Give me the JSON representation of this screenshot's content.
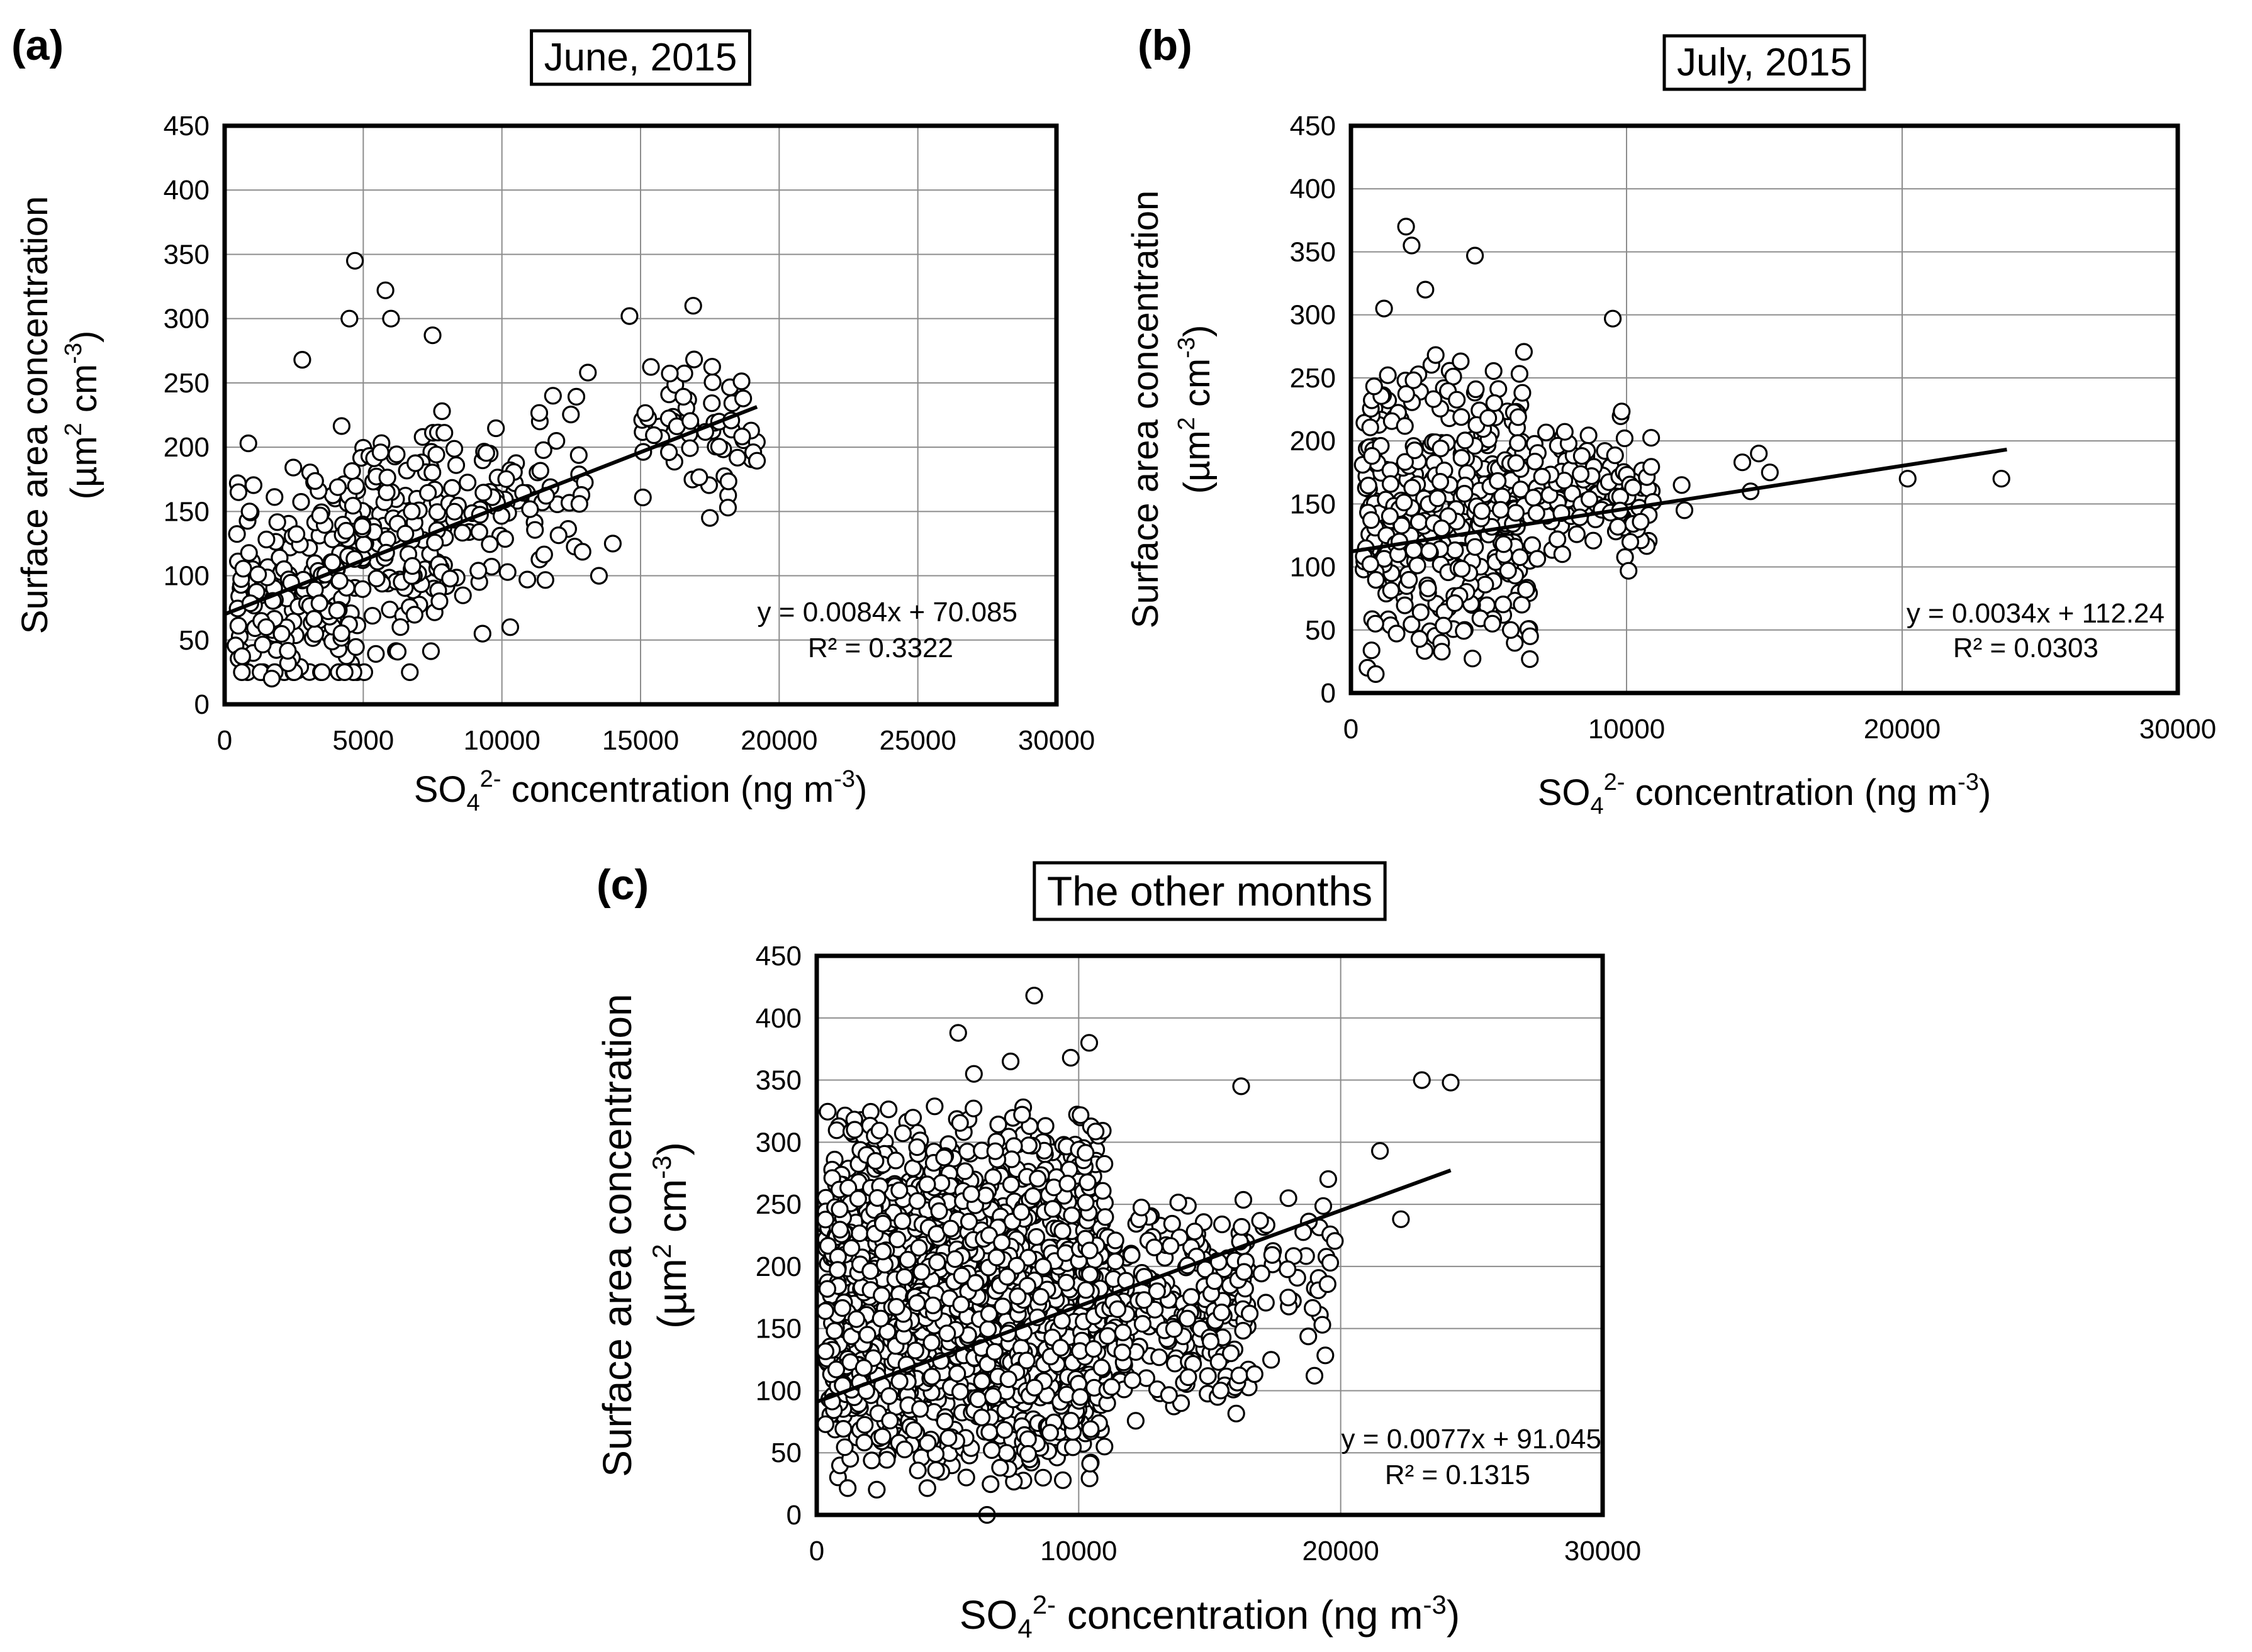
{
  "figure": {
    "background": "#ffffff",
    "ink": "#000000",
    "grid_color": "#8c8c8c"
  },
  "chart_data": [
    {
      "panel": "(a)",
      "type": "scatter",
      "title": "June, 2015",
      "xlabel": {
        "base": "SO",
        "sub": "4",
        "sup": "2-",
        "rest": " concentration (ng m",
        "unit_sup": "-3",
        "end": ")"
      },
      "ylabel": {
        "line1": "Surface area concentration",
        "line2_pre": "(µm",
        "line2_sup1": "2",
        "line2_mid": " cm",
        "line2_sup2": "-3",
        "line2_end": ")"
      },
      "xlim": [
        0,
        30000
      ],
      "ylim": [
        0,
        450
      ],
      "xticks": [
        0,
        5000,
        10000,
        15000,
        20000,
        25000,
        30000
      ],
      "yticks": [
        0,
        50,
        100,
        150,
        200,
        250,
        300,
        350,
        400,
        450
      ],
      "grid": true,
      "fit": {
        "slope": 0.0084,
        "intercept": 70.085,
        "x_range": [
          0,
          19200
        ],
        "equation": "y = 0.0084x + 70.085",
        "r2": "R² = 0.3322"
      },
      "seed": 11,
      "clusters": [
        {
          "n": 300,
          "x": [
            300,
            8000
          ],
          "y": [
            25,
            250
          ],
          "trend": true,
          "spread": 55
        },
        {
          "n": 80,
          "x": [
            8000,
            13000
          ],
          "y": [
            55,
            240
          ],
          "trend": true,
          "spread": 45
        },
        {
          "n": 60,
          "x": [
            15000,
            19200
          ],
          "y": [
            145,
            275
          ],
          "trend": false,
          "spread": 0
        }
      ],
      "points": [
        [
          4700,
          345
        ],
        [
          5800,
          322
        ],
        [
          7500,
          287
        ],
        [
          14600,
          302
        ],
        [
          16900,
          310
        ],
        [
          2800,
          268
        ],
        [
          9300,
          55
        ],
        [
          10300,
          60
        ],
        [
          13100,
          258
        ],
        [
          17500,
          145
        ],
        [
          13500,
          100
        ],
        [
          14000,
          125
        ],
        [
          900,
          150
        ],
        [
          500,
          165
        ],
        [
          1500,
          60
        ],
        [
          1700,
          20
        ],
        [
          6000,
          300
        ],
        [
          4500,
          300
        ]
      ]
    },
    {
      "panel": "(b)",
      "type": "scatter",
      "title": "July, 2015",
      "xlabel": {
        "base": "SO",
        "sub": "4",
        "sup": "2-",
        "rest": " concentration (ng m",
        "unit_sup": "-3",
        "end": ")"
      },
      "ylabel": {
        "line1": "Surface area concentration",
        "line2_pre": "(µm",
        "line2_sup1": "2",
        "line2_mid": " cm",
        "line2_sup2": "-3",
        "line2_end": ")"
      },
      "xlim": [
        0,
        30000
      ],
      "ylim": [
        0,
        450
      ],
      "xticks": [
        0,
        10000,
        20000,
        30000
      ],
      "yticks": [
        0,
        50,
        100,
        150,
        200,
        250,
        300,
        350,
        400,
        450
      ],
      "grid": true,
      "fit": {
        "slope": 0.0034,
        "intercept": 112.24,
        "x_range": [
          0,
          23800
        ],
        "equation": "y = 0.0034x + 112.24",
        "r2": "R² = 0.0303"
      },
      "seed": 23,
      "clusters": [
        {
          "n": 380,
          "x": [
            400,
            6500
          ],
          "y": [
            15,
            280
          ],
          "trend": false,
          "spread": 0
        },
        {
          "n": 120,
          "x": [
            6500,
            11000
          ],
          "y": [
            95,
            230
          ],
          "trend": false,
          "spread": 0
        }
      ],
      "points": [
        [
          2000,
          370
        ],
        [
          2200,
          355
        ],
        [
          4500,
          347
        ],
        [
          2700,
          320
        ],
        [
          1200,
          305
        ],
        [
          9500,
          297
        ],
        [
          12000,
          165
        ],
        [
          12100,
          145
        ],
        [
          14200,
          183
        ],
        [
          14500,
          160
        ],
        [
          14800,
          190
        ],
        [
          15200,
          175
        ],
        [
          20200,
          170
        ],
        [
          23600,
          170
        ],
        [
          600,
          20
        ],
        [
          900,
          15
        ],
        [
          6500,
          45
        ],
        [
          5800,
          50
        ],
        [
          5200,
          230
        ]
      ]
    },
    {
      "panel": "(c)",
      "type": "scatter",
      "title": "The other months",
      "xlabel": {
        "base": "SO",
        "sub": "4",
        "sup": "2-",
        "rest": " concentration (ng m",
        "unit_sup": "-3",
        "end": ")"
      },
      "ylabel": {
        "line1": "Surface area concentration",
        "line2_pre": "(µm",
        "line2_sup1": "2",
        "line2_mid": " cm",
        "line2_sup2": "-3",
        "line2_end": ")"
      },
      "xlim": [
        0,
        30000
      ],
      "ylim": [
        0,
        450
      ],
      "xticks": [
        0,
        10000,
        20000,
        30000
      ],
      "yticks": [
        0,
        50,
        100,
        150,
        200,
        250,
        300,
        350,
        400,
        450
      ],
      "grid": true,
      "fit": {
        "slope": 0.0077,
        "intercept": 91.045,
        "x_range": [
          0,
          24200
        ],
        "equation": "y = 0.0077x + 91.045",
        "r2": "R² = 0.1315"
      },
      "seed": 37,
      "clusters": [
        {
          "n": 1600,
          "x": [
            300,
            11000
          ],
          "y": [
            15,
            340
          ],
          "trend": false,
          "spread": 0
        },
        {
          "n": 250,
          "x": [
            10000,
            16500
          ],
          "y": [
            75,
            260
          ],
          "trend": false,
          "spread": 0
        },
        {
          "n": 40,
          "x": [
            16000,
            19800
          ],
          "y": [
            110,
            280
          ],
          "trend": false,
          "spread": 0
        }
      ],
      "points": [
        [
          8300,
          418
        ],
        [
          10400,
          380
        ],
        [
          5400,
          388
        ],
        [
          23100,
          350
        ],
        [
          24200,
          348
        ],
        [
          16200,
          345
        ],
        [
          21500,
          293
        ],
        [
          22300,
          238
        ],
        [
          19600,
          203
        ],
        [
          19300,
          153
        ],
        [
          19000,
          112
        ],
        [
          18000,
          175
        ],
        [
          6500,
          0
        ],
        [
          6000,
          355
        ],
        [
          7400,
          365
        ],
        [
          9700,
          368
        ]
      ]
    }
  ]
}
